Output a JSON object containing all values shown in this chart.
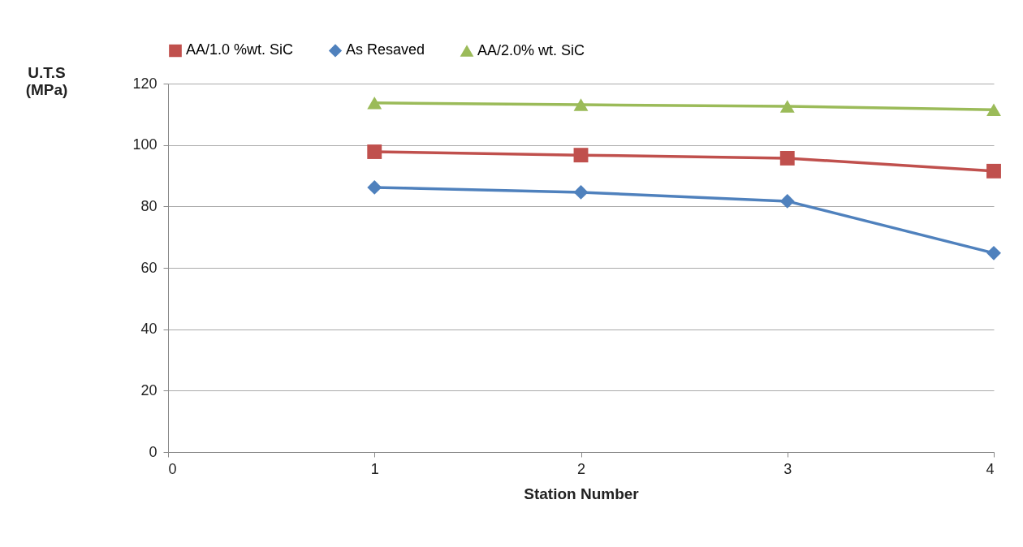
{
  "chart_data": {
    "type": "line",
    "xlabel": "Station  Number",
    "ylabel": "U.T.S (MPa)",
    "x": [
      1,
      2,
      3,
      4
    ],
    "series": [
      {
        "name": "AA/1.0 %wt. SiC",
        "color": "#c0504d",
        "marker": "square",
        "values": [
          97.8,
          96.7,
          95.7,
          91.5
        ]
      },
      {
        "name": "As Resaved",
        "color": "#4f81bd",
        "marker": "diamond",
        "values": [
          86.2,
          84.6,
          81.7,
          64.8
        ]
      },
      {
        "name": "AA/2.0% wt. SiC",
        "color": "#9bbb59",
        "marker": "triangle",
        "values": [
          113.7,
          113.1,
          112.6,
          111.5
        ]
      }
    ],
    "xlim": [
      0,
      4
    ],
    "xticks": [
      0,
      1,
      2,
      3,
      4
    ],
    "ylim": [
      0,
      120
    ],
    "yticks": [
      0,
      20,
      40,
      60,
      80,
      100,
      120
    ],
    "grid": "y",
    "legend": "top"
  }
}
